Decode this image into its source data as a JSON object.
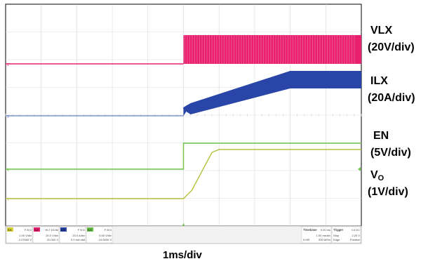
{
  "scope": {
    "colors": {
      "background": "#ffffff",
      "grid": "#d9d9d9",
      "vlx": "#e8206f",
      "ilx": "#2a45a8",
      "en": "#6cc24a",
      "vo": "#b4bf3a"
    },
    "channels": [
      {
        "id": "C1",
        "line1": "F B D",
        "line2": "1.00 V/div",
        "line3": "-2.97500 V",
        "color": "#d8d23a",
        "name": "c1"
      },
      {
        "id": "C2",
        "line1": "HLT DCIM",
        "line2": "20.0 V/div",
        "line3": "20.000 V",
        "color": "#e8206f",
        "name": "c2"
      },
      {
        "id": "C3",
        "line1": "F B D",
        "line2": "20.0 A/div",
        "line3": "0.0 mA ofst",
        "color": "#2a45a8",
        "name": "c3"
      },
      {
        "id": "C4",
        "line1": "F B D",
        "line2": "5.00 V/div",
        "line3": "-10.0000 V",
        "color": "#6cc24a",
        "name": "c4"
      }
    ],
    "timebase": {
      "title": "Timebase",
      "offset": "0.00 ms",
      "div": "1.00 ms/div",
      "sr": "500 MS/s",
      "pts": "5 MS"
    },
    "trigger": {
      "title": "Trigger",
      "src": "C4 DC",
      "mode": "Stop",
      "level": "2.20 V",
      "type": "Edge",
      "slope": "Positive"
    }
  },
  "labels": {
    "vlx_name": "VLX",
    "vlx_scale": "(20V/div)",
    "ilx_name": "ILX",
    "ilx_scale": "(20A/div)",
    "en_name": "EN",
    "en_scale": "(5V/div)",
    "vo_name": "V",
    "vo_sub": "O",
    "vo_scale": "(1V/div)",
    "time_scale": "1ms/div"
  },
  "chart_data": {
    "type": "line",
    "title": "",
    "xlabel": "1ms/div",
    "x_unit": "ms",
    "xlim": [
      -5,
      5
    ],
    "series": [
      {
        "name": "VLX",
        "scale": "20V/div",
        "points": [
          [
            -5,
            0
          ],
          [
            0,
            0
          ],
          [
            0,
            30
          ],
          [
            5,
            30
          ]
        ],
        "note_style": "switching band"
      },
      {
        "name": "ILX",
        "scale": "20A/div",
        "points": [
          [
            -5,
            0
          ],
          [
            0,
            0
          ],
          [
            0.1,
            3
          ],
          [
            3.5,
            35
          ],
          [
            5,
            35
          ]
        ]
      },
      {
        "name": "EN",
        "scale": "5V/div",
        "points": [
          [
            -5,
            0
          ],
          [
            0,
            0
          ],
          [
            0,
            5
          ],
          [
            5,
            5
          ]
        ]
      },
      {
        "name": "VO",
        "scale": "1V/div",
        "points": [
          [
            -5,
            0
          ],
          [
            0,
            0
          ],
          [
            1,
            1.8
          ],
          [
            5,
            1.8
          ]
        ]
      }
    ]
  }
}
